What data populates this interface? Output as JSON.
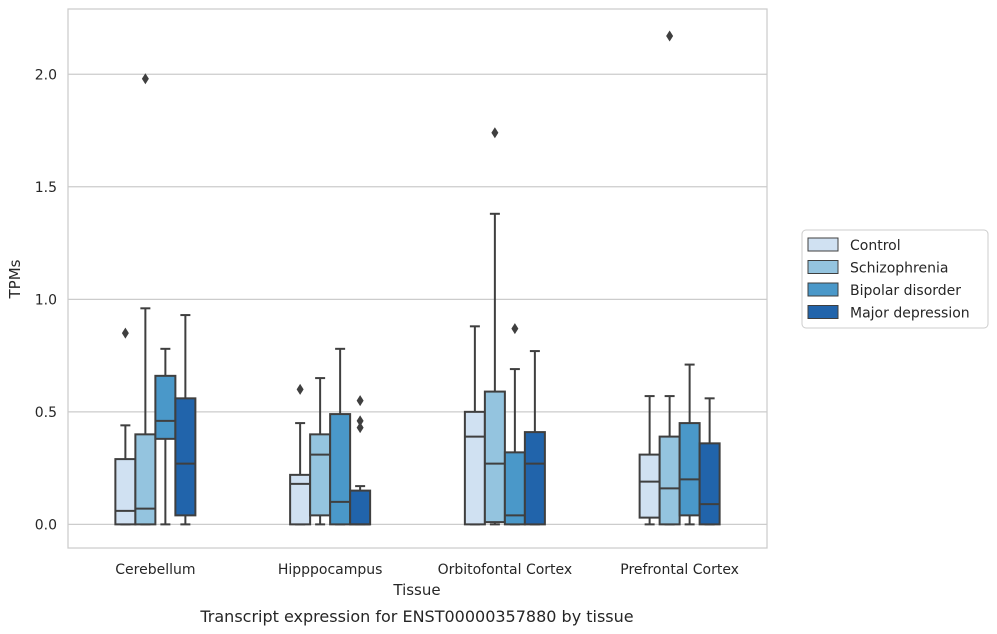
{
  "chart_data": {
    "type": "boxplot",
    "title": "",
    "caption": "Transcript expression for ENST00000357880 by tissue",
    "xlabel": "Tissue",
    "ylabel": "TPMs",
    "ylim": [
      -0.105,
      2.29
    ],
    "yticks": [
      0.0,
      0.5,
      1.0,
      1.5,
      2.0
    ],
    "ytick_labels": [
      "0.0",
      "0.5",
      "1.0",
      "1.5",
      "2.0"
    ],
    "grid": "horizontal",
    "legend_position": "right",
    "categories": [
      "Cerebellum",
      "Hipppocampus",
      "Orbitofontal Cortex",
      "Prefrontal Cortex"
    ],
    "series": [
      {
        "name": "Control",
        "color": "#d0e1f2",
        "boxes": [
          {
            "whislo": 0.0,
            "q1": 0.0,
            "med": 0.06,
            "q3": 0.29,
            "whishi": 0.44,
            "fliers": [
              0.85
            ]
          },
          {
            "whislo": 0.0,
            "q1": 0.0,
            "med": 0.18,
            "q3": 0.22,
            "whishi": 0.45,
            "fliers": [
              0.6
            ]
          },
          {
            "whislo": 0.0,
            "q1": 0.0,
            "med": 0.39,
            "q3": 0.5,
            "whishi": 0.88,
            "fliers": []
          },
          {
            "whislo": 0.0,
            "q1": 0.03,
            "med": 0.19,
            "q3": 0.31,
            "whishi": 0.57,
            "fliers": []
          }
        ]
      },
      {
        "name": "Schizophrenia",
        "color": "#94c4df",
        "boxes": [
          {
            "whislo": 0.0,
            "q1": 0.0,
            "med": 0.07,
            "q3": 0.4,
            "whishi": 0.96,
            "fliers": [
              1.98
            ]
          },
          {
            "whislo": 0.0,
            "q1": 0.04,
            "med": 0.31,
            "q3": 0.4,
            "whishi": 0.65,
            "fliers": []
          },
          {
            "whislo": 0.0,
            "q1": 0.01,
            "med": 0.27,
            "q3": 0.59,
            "whishi": 1.38,
            "fliers": [
              1.74
            ]
          },
          {
            "whislo": 0.0,
            "q1": 0.0,
            "med": 0.16,
            "q3": 0.39,
            "whishi": 0.57,
            "fliers": [
              2.17
            ]
          }
        ]
      },
      {
        "name": "Bipolar disorder",
        "color": "#4a98c9",
        "boxes": [
          {
            "whislo": 0.0,
            "q1": 0.38,
            "med": 0.46,
            "q3": 0.66,
            "whishi": 0.78,
            "fliers": []
          },
          {
            "whislo": 0.0,
            "q1": 0.0,
            "med": 0.1,
            "q3": 0.49,
            "whishi": 0.78,
            "fliers": []
          },
          {
            "whislo": 0.0,
            "q1": 0.0,
            "med": 0.04,
            "q3": 0.32,
            "whishi": 0.69,
            "fliers": [
              0.87
            ]
          },
          {
            "whislo": 0.0,
            "q1": 0.04,
            "med": 0.2,
            "q3": 0.45,
            "whishi": 0.71,
            "fliers": []
          }
        ]
      },
      {
        "name": "Major depression",
        "color": "#2164ab",
        "boxes": [
          {
            "whislo": 0.0,
            "q1": 0.04,
            "med": 0.27,
            "q3": 0.56,
            "whishi": 0.93,
            "fliers": []
          },
          {
            "whislo": 0.0,
            "q1": 0.0,
            "med": 0.0,
            "q3": 0.15,
            "whishi": 0.17,
            "fliers": [
              0.43,
              0.46,
              0.55
            ]
          },
          {
            "whislo": 0.0,
            "q1": 0.0,
            "med": 0.27,
            "q3": 0.41,
            "whishi": 0.77,
            "fliers": []
          },
          {
            "whislo": 0.0,
            "q1": 0.0,
            "med": 0.09,
            "q3": 0.36,
            "whishi": 0.56,
            "fliers": []
          }
        ]
      }
    ]
  }
}
